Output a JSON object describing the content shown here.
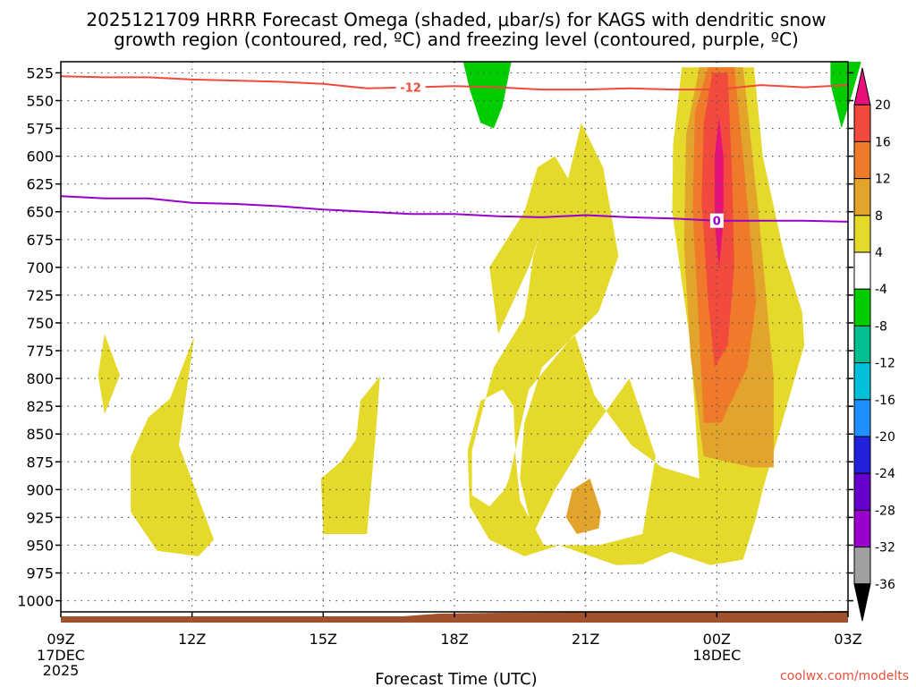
{
  "chart_data": {
    "type": "heatmap",
    "title": [
      "2025121709 HRRR Forecast Omega (shaded, μbar/s) for KAGS with dendritic snow",
      "growth region (contoured, red, ºC) and freezing level (contoured, purple, ºC)"
    ],
    "xlabel": "Forecast Time (UTC)",
    "credit": "coolwx.com/modelts",
    "x_hours": [
      0,
      3,
      6,
      9,
      12,
      15,
      18
    ],
    "x_tick_labels": [
      "09Z",
      "12Z",
      "15Z",
      "18Z",
      "21Z",
      "00Z",
      "03Z"
    ],
    "x_date_labels": [
      {
        "hour": 0,
        "lines": [
          "17DEC",
          "2025"
        ]
      },
      {
        "hour": 15,
        "lines": [
          "18DEC"
        ]
      }
    ],
    "y_levels_hpa": [
      525,
      550,
      575,
      600,
      625,
      650,
      675,
      700,
      725,
      750,
      775,
      800,
      825,
      850,
      875,
      900,
      925,
      950,
      975,
      1000
    ],
    "ylim": [
      515,
      1010
    ],
    "xlim": [
      0,
      18
    ],
    "colorbar": {
      "unit": "μbar/s",
      "tick_labels": [
        "-36",
        "-32",
        "-28",
        "-24",
        "-20",
        "-16",
        "-12",
        "-8",
        "-4",
        "4",
        "8",
        "12",
        "16",
        "20"
      ],
      "bands": [
        {
          "range": "< -36",
          "color": "#000000"
        },
        {
          "range": "-36 to -32",
          "color": "#a0a0a0"
        },
        {
          "range": "-32 to -28",
          "color": "#9900cc"
        },
        {
          "range": "-28 to -24",
          "color": "#6600cc"
        },
        {
          "range": "-24 to -20",
          "color": "#2222dd"
        },
        {
          "range": "-20 to -16",
          "color": "#1e90ff"
        },
        {
          "range": "-16 to -12",
          "color": "#00c0d8"
        },
        {
          "range": "-12 to -8",
          "color": "#00c090"
        },
        {
          "range": "-8 to -4",
          "color": "#00cc00"
        },
        {
          "range": "-4 to 4",
          "color": "#ffffff"
        },
        {
          "range": "4 to 8",
          "color": "#e5d92c"
        },
        {
          "range": "8 to 12",
          "color": "#e3a42b"
        },
        {
          "range": "12 to 16",
          "color": "#ef7b2a"
        },
        {
          "range": "16 to 20",
          "color": "#f24a3c"
        },
        {
          "range": "> 20",
          "color": "#e8107a"
        }
      ]
    },
    "shaded_regions": [
      {
        "name": "downward-4-8-a",
        "color": "#e5d92c",
        "points": [
          [
            1.0,
            760
          ],
          [
            1.35,
            797
          ],
          [
            1.0,
            832
          ],
          [
            0.85,
            797
          ]
        ]
      },
      {
        "name": "downward-4-8-b",
        "color": "#e5d92c",
        "points": [
          [
            3.05,
            762
          ],
          [
            2.7,
            860
          ],
          [
            3.5,
            945
          ],
          [
            3.15,
            960
          ],
          [
            2.2,
            955
          ],
          [
            1.6,
            920
          ],
          [
            1.6,
            870
          ],
          [
            2.0,
            835
          ],
          [
            2.5,
            818
          ]
        ]
      },
      {
        "name": "downward-4-8-c",
        "color": "#e5d92c",
        "points": [
          [
            7.3,
            798
          ],
          [
            7.2,
            850
          ],
          [
            7.0,
            940
          ],
          [
            6.0,
            940
          ],
          [
            5.95,
            890
          ],
          [
            6.4,
            875
          ],
          [
            6.75,
            855
          ],
          [
            6.85,
            820
          ]
        ]
      },
      {
        "name": "downward-4-8-d",
        "color": "#e5d92c",
        "points": [
          [
            11.9,
            570
          ],
          [
            12.4,
            610
          ],
          [
            12.75,
            690
          ],
          [
            12.3,
            740
          ],
          [
            11.0,
            790
          ],
          [
            10.6,
            840
          ],
          [
            10.5,
            890
          ],
          [
            10.8,
            940
          ],
          [
            11.3,
            900
          ],
          [
            12.0,
            855
          ],
          [
            13.0,
            800
          ],
          [
            13.6,
            870
          ],
          [
            13.3,
            940
          ],
          [
            12.3,
            950
          ],
          [
            11.05,
            950
          ],
          [
            10.5,
            910
          ],
          [
            10.4,
            870
          ],
          [
            10.35,
            825
          ],
          [
            10.1,
            810
          ],
          [
            9.6,
            820
          ],
          [
            9.3,
            865
          ],
          [
            9.35,
            915
          ],
          [
            9.8,
            945
          ],
          [
            10.6,
            960
          ],
          [
            11.4,
            950
          ],
          [
            12.7,
            968
          ],
          [
            13.3,
            967
          ],
          [
            13.95,
            956
          ],
          [
            14.85,
            968
          ],
          [
            15.6,
            963
          ],
          [
            15.9,
            925
          ],
          [
            16.05,
            900
          ],
          [
            17.0,
            770
          ],
          [
            16.95,
            740
          ],
          [
            16.55,
            690
          ],
          [
            16.05,
            600
          ],
          [
            15.85,
            520
          ],
          [
            14.2,
            520
          ],
          [
            14.0,
            590
          ],
          [
            13.98,
            650
          ],
          [
            14.4,
            770
          ],
          [
            14.6,
            890
          ],
          [
            13.75,
            880
          ],
          [
            13.05,
            860
          ],
          [
            12.2,
            815
          ],
          [
            11.75,
            760
          ],
          [
            10.7,
            810
          ],
          [
            10.25,
            890
          ],
          [
            10.15,
            900
          ],
          [
            9.8,
            915
          ],
          [
            9.4,
            905
          ],
          [
            9.4,
            865
          ],
          [
            9.9,
            790
          ],
          [
            10.6,
            745
          ],
          [
            10.7,
            720
          ],
          [
            10.8,
            690
          ],
          [
            11.0,
            665
          ],
          [
            10.7,
            700
          ],
          [
            10.0,
            760
          ],
          [
            9.8,
            700
          ],
          [
            10.6,
            650
          ],
          [
            10.9,
            610
          ],
          [
            11.3,
            600
          ],
          [
            11.6,
            620
          ]
        ]
      },
      {
        "name": "downward-8-12-a",
        "color": "#e3a42b",
        "points": [
          [
            12.1,
            890
          ],
          [
            12.35,
            920
          ],
          [
            12.3,
            935
          ],
          [
            11.8,
            940
          ],
          [
            11.55,
            925
          ],
          [
            11.7,
            900
          ]
        ]
      },
      {
        "name": "downward-8-12-b",
        "color": "#e3a42b",
        "points": [
          [
            14.6,
            520
          ],
          [
            15.6,
            520
          ],
          [
            15.95,
            650
          ],
          [
            16.3,
            800
          ],
          [
            16.3,
            880
          ],
          [
            15.8,
            880
          ],
          [
            14.7,
            870
          ],
          [
            14.4,
            780
          ],
          [
            14.25,
            680
          ],
          [
            14.3,
            580
          ]
        ]
      },
      {
        "name": "downward-12-16",
        "color": "#ef7b2a",
        "points": [
          [
            14.8,
            520
          ],
          [
            15.4,
            520
          ],
          [
            15.65,
            620
          ],
          [
            15.9,
            730
          ],
          [
            15.7,
            790
          ],
          [
            15.1,
            840
          ],
          [
            14.7,
            840
          ],
          [
            14.6,
            760
          ],
          [
            14.45,
            650
          ],
          [
            14.5,
            560
          ]
        ]
      },
      {
        "name": "downward-16-20",
        "color": "#f24a3c",
        "points": [
          [
            14.9,
            525
          ],
          [
            15.25,
            525
          ],
          [
            15.35,
            620
          ],
          [
            15.4,
            700
          ],
          [
            15.25,
            770
          ],
          [
            14.95,
            790
          ],
          [
            14.8,
            730
          ],
          [
            14.65,
            640
          ],
          [
            14.7,
            570
          ]
        ]
      },
      {
        "name": "downward-gt-20",
        "color": "#e8107a",
        "points": [
          [
            15.05,
            565
          ],
          [
            15.15,
            600
          ],
          [
            15.15,
            660
          ],
          [
            15.05,
            700
          ],
          [
            14.95,
            660
          ],
          [
            14.95,
            600
          ]
        ]
      },
      {
        "name": "upward-4-8-a",
        "color": "#00cc00",
        "points": [
          [
            9.2,
            515
          ],
          [
            10.3,
            515
          ],
          [
            10.1,
            555
          ],
          [
            9.9,
            575
          ],
          [
            9.6,
            570
          ],
          [
            9.35,
            540
          ]
        ]
      },
      {
        "name": "upward-4-8-b",
        "color": "#00cc00",
        "points": [
          [
            17.6,
            515
          ],
          [
            18.3,
            515
          ],
          [
            18.05,
            550
          ],
          [
            17.85,
            575
          ],
          [
            17.6,
            535
          ]
        ]
      }
    ],
    "series": [
      {
        "name": "dendritic snow growth -12C isotherm",
        "color": "#ef4a3c",
        "label": "-12",
        "x": [
          0,
          1,
          2,
          3,
          4,
          5,
          6,
          7,
          8,
          9,
          10,
          11,
          12,
          13,
          14,
          15,
          16,
          17,
          18
        ],
        "y_hpa": [
          528,
          529,
          529,
          531,
          532,
          533,
          535,
          539,
          538,
          537,
          538,
          540,
          540,
          539,
          540,
          540,
          536,
          538,
          536
        ]
      },
      {
        "name": "freezing level 0C isotherm",
        "color": "#9900cc",
        "label": "0",
        "x": [
          0,
          1,
          2,
          3,
          4,
          5,
          6,
          7,
          8,
          9,
          10,
          11,
          12,
          13,
          14,
          15,
          16,
          17,
          18
        ],
        "y_hpa": [
          636,
          638,
          638,
          642,
          643,
          645,
          648,
          650,
          652,
          652,
          654,
          655,
          653,
          655,
          656,
          658,
          658,
          658,
          659
        ]
      }
    ],
    "surface_terrain": {
      "color": "#a0522d",
      "label": "terrain below 1000 hPa"
    }
  }
}
